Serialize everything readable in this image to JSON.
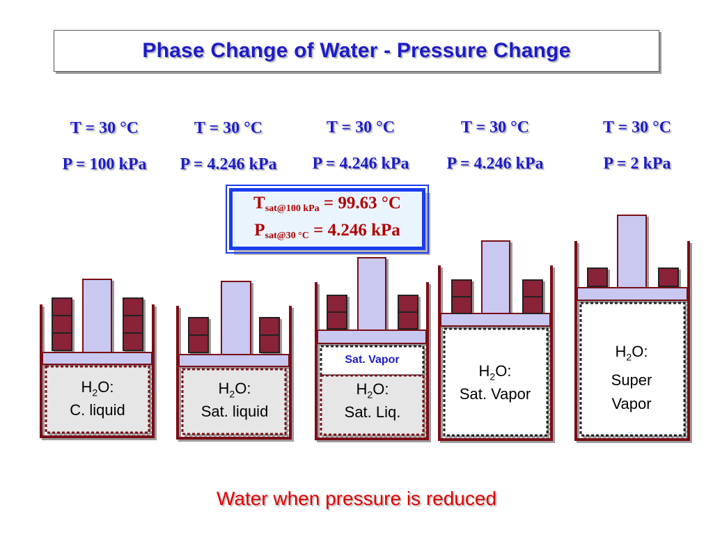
{
  "title": "Phase Change of Water - Pressure Change",
  "saturation_box": {
    "line1_main": "T",
    "line1_sub": "sat@100 kPa",
    "line1_value": "= 99.63 °C",
    "line2_main": "P",
    "line2_sub": "sat@30 °C",
    "line2_value": "= 4.246 kPa"
  },
  "states": [
    {
      "temperature": "T = 30 °C",
      "pressure": "P = 100 kPa",
      "content_prefix": "H",
      "content_sub": "2",
      "content_suffix": "O:",
      "content_line2": "C. liquid",
      "content_line3": ""
    },
    {
      "temperature": "T = 30 °C",
      "pressure": "P = 4.246 kPa",
      "content_prefix": "H",
      "content_sub": "2",
      "content_suffix": "O:",
      "content_line2": "Sat. liquid",
      "content_line3": ""
    },
    {
      "temperature": "T = 30 °C",
      "pressure": "P = 4.246 kPa",
      "content_prefix": "H",
      "content_sub": "2",
      "content_suffix": "O:",
      "content_line2": "Sat. Liq.",
      "content_line3": "",
      "vapor_label": "Sat. Vapor"
    },
    {
      "temperature": "T = 30 °C",
      "pressure": "P = 4.246 kPa",
      "content_prefix": "H",
      "content_sub": "2",
      "content_suffix": "O:",
      "content_line2": "Sat. Vapor",
      "content_line3": ""
    },
    {
      "temperature": "T = 30 °C",
      "pressure": "P = 2 kPa",
      "content_prefix": "H",
      "content_sub": "2",
      "content_suffix": "O:",
      "content_line2": "Super",
      "content_line3": "Vapor"
    }
  ],
  "footer": "Water when pressure is reduced",
  "colors": {
    "title": "#1c1cc8",
    "cylinder_wall": "#7a0a14",
    "piston": "#c8c8f0",
    "weight": "#8a2438",
    "liquid_fill": "#e6e6e6",
    "vapor_fill": "#ffffff",
    "saturation_text": "#b00000",
    "saturation_border": "#1a3cf0",
    "footer": "#e00000"
  }
}
